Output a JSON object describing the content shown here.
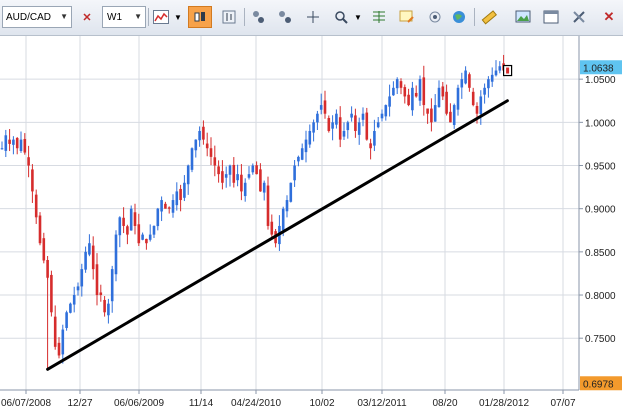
{
  "toolbar": {
    "symbol": "AUD/CAD",
    "timeframe": "W1"
  },
  "colors": {
    "up": "#2f6fdb",
    "down": "#d62c2c",
    "trendline": "#000000",
    "price_badge": "#5fc4f0",
    "low_badge": "#f39a2c",
    "grid": "#d7dbe2",
    "toolbar_active": "#f7a24a"
  },
  "chart_data": {
    "type": "candlestick",
    "ylim": [
      0.69,
      1.1
    ],
    "y_ticks": [
      "1.0500",
      "1.0000",
      "0.9500",
      "0.9000",
      "0.8500",
      "0.8000",
      "0.7500"
    ],
    "current_price_label": "1.0638",
    "low_price_label": "0.6978",
    "x_ticks": [
      "06/07/2008",
      "12/27",
      "06/06/2009",
      "11/14",
      "04/24/2010",
      "10/02",
      "03/12/2011",
      "08/20",
      "01/28/2012",
      "07/07"
    ],
    "trendline": {
      "start": {
        "x_index": 12,
        "price": 0.714
      },
      "end": {
        "x_index": 133,
        "price": 1.025
      }
    },
    "price_path": [
      0.97,
      0.985,
      0.975,
      0.98,
      0.97,
      0.98,
      0.965,
      0.95,
      0.92,
      0.89,
      0.86,
      0.84,
      0.82,
      0.78,
      0.74,
      0.73,
      0.76,
      0.78,
      0.79,
      0.8,
      0.81,
      0.83,
      0.85,
      0.86,
      0.83,
      0.8,
      0.8,
      0.78,
      0.79,
      0.83,
      0.87,
      0.89,
      0.88,
      0.87,
      0.9,
      0.88,
      0.86,
      0.87,
      0.86,
      0.87,
      0.88,
      0.9,
      0.91,
      0.9,
      0.9,
      0.91,
      0.92,
      0.91,
      0.93,
      0.95,
      0.97,
      0.98,
      0.99,
      0.98,
      0.97,
      0.96,
      0.95,
      0.94,
      0.93,
      0.94,
      0.95,
      0.93,
      0.94,
      0.92,
      0.93,
      0.94,
      0.95,
      0.94,
      0.92,
      0.93,
      0.88,
      0.87,
      0.86,
      0.88,
      0.9,
      0.91,
      0.93,
      0.95,
      0.96,
      0.97,
      0.98,
      0.99,
      1.0,
      1.01,
      1.02,
      1.01,
      0.99,
      1.0,
      1.01,
      0.98,
      0.99,
      1.0,
      1.01,
      0.99,
      1.0,
      1.01,
      0.98,
      0.97,
      0.99,
      1.0,
      1.01,
      1.02,
      1.03,
      1.04,
      1.05,
      1.04,
      1.03,
      1.02,
      1.04,
      1.03,
      1.05,
      1.02,
      1.01,
      1.0,
      1.02,
      1.04,
      1.03,
      1.01,
      1.0,
      1.02,
      1.04,
      1.05,
      1.06,
      1.04,
      1.02,
      1.01,
      1.03,
      1.04,
      1.05,
      1.055,
      1.06,
      1.065,
      1.06
    ]
  }
}
